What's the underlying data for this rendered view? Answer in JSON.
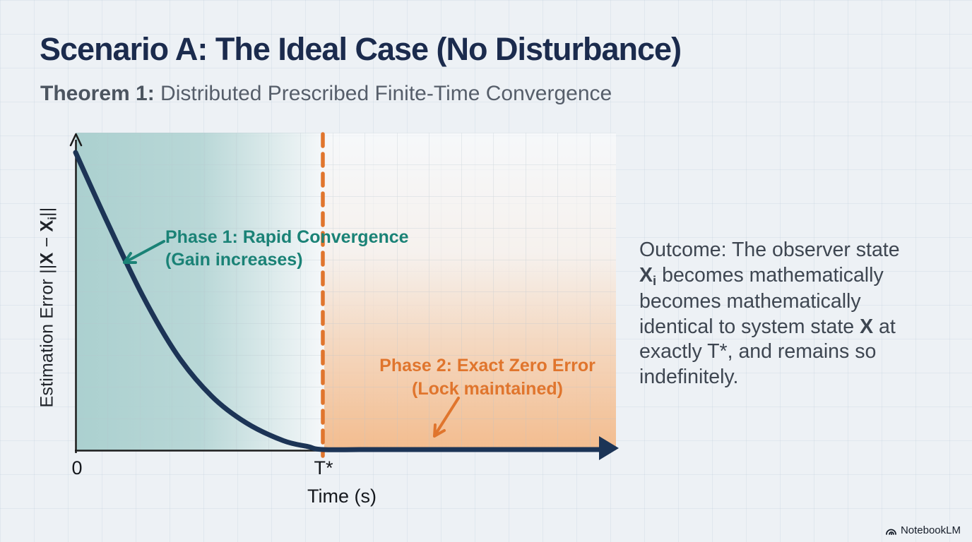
{
  "header": {
    "title": "Scenario A: The Ideal Case (No Disturbance)",
    "subtitle_label": "Theorem 1:",
    "subtitle_rest": " Distributed Prescribed Finite-Time Convergence"
  },
  "chart": {
    "ylabel_lines": [
      [
        {
          "t": "Estimation Error ||"
        },
        {
          "t": "X",
          "b": 1
        },
        {
          "t": " − "
        },
        {
          "t": "X",
          "b": 1
        },
        {
          "t": "i",
          "b": 1,
          "s": 1
        },
        {
          "t": "||"
        }
      ]
    ],
    "x_tick_zero": "0",
    "x_tick_tstar": "T*",
    "xlabel": "Time (s)",
    "phase1_line1": "Phase 1: Rapid Convergence",
    "phase1_line2": "(Gain increases)",
    "phase2_line1": "Phase 2: Exact Zero Error",
    "phase2_line2": "(Lock maintained)"
  },
  "outcome": {
    "lines": [
      [
        {
          "t": "Outcome: The observer state"
        }
      ],
      [
        {
          "t": "X",
          "b": 1
        },
        {
          "t": "i",
          "b": 1,
          "s": 1
        },
        {
          "t": " becomes mathematically"
        }
      ],
      [
        {
          "t": "becomes mathematically"
        }
      ],
      [
        {
          "t": "identical to system state "
        },
        {
          "t": "X",
          "b": 1
        },
        {
          "t": " at"
        }
      ],
      [
        {
          "t": "exactly T*, and remains so"
        }
      ],
      [
        {
          "t": "indefinitely."
        }
      ]
    ]
  },
  "watermark": {
    "label": "NotebookLM",
    "icon": "notebooklm-logo"
  },
  "colors": {
    "title": "#1b2b4d",
    "subtitle": "#565e6a",
    "body": "#3e4651",
    "curve": "#1c3456",
    "teal-fill": "#a7cecd",
    "teal-text": "#1a8276",
    "orange": "#e0752d",
    "orange-fill": "#f2b27c",
    "axis": "#1c1c1c"
  },
  "chart_data": {
    "type": "line",
    "title": "",
    "xlabel": "Time (s)",
    "ylabel": "Estimation Error ||X − Xi||",
    "x_ticks": [
      "0",
      "T*"
    ],
    "x_axis_note": "time normalized so that T* = 1",
    "ylim": [
      0,
      1
    ],
    "grid": true,
    "vline": {
      "x": 1.0,
      "label": "T*",
      "style": "dashed",
      "color": "#e0752d"
    },
    "regions": [
      {
        "name": "Phase 1: Rapid Convergence (Gain increases)",
        "x_from": 0,
        "x_to": 1.0,
        "color": "#a7cecd"
      },
      {
        "name": "Phase 2: Exact Zero Error (Lock maintained)",
        "x_from": 1.0,
        "x_to": 2.12,
        "color": "#f2b27c"
      }
    ],
    "series": [
      {
        "name": "Estimation error ||X − Xi||",
        "description": "Exponential-like decay reaching exactly zero at T*, then held at zero indefinitely",
        "points": [
          [
            0,
            1.0
          ],
          [
            0.12,
            0.78
          ],
          [
            0.27,
            0.52
          ],
          [
            0.41,
            0.32
          ],
          [
            0.55,
            0.18
          ],
          [
            0.69,
            0.09
          ],
          [
            0.84,
            0.03
          ],
          [
            0.94,
            0.01
          ],
          [
            1.0,
            0.0
          ],
          [
            1.2,
            0.0
          ],
          [
            1.7,
            0.0
          ],
          [
            2.12,
            0.0
          ]
        ]
      }
    ]
  }
}
